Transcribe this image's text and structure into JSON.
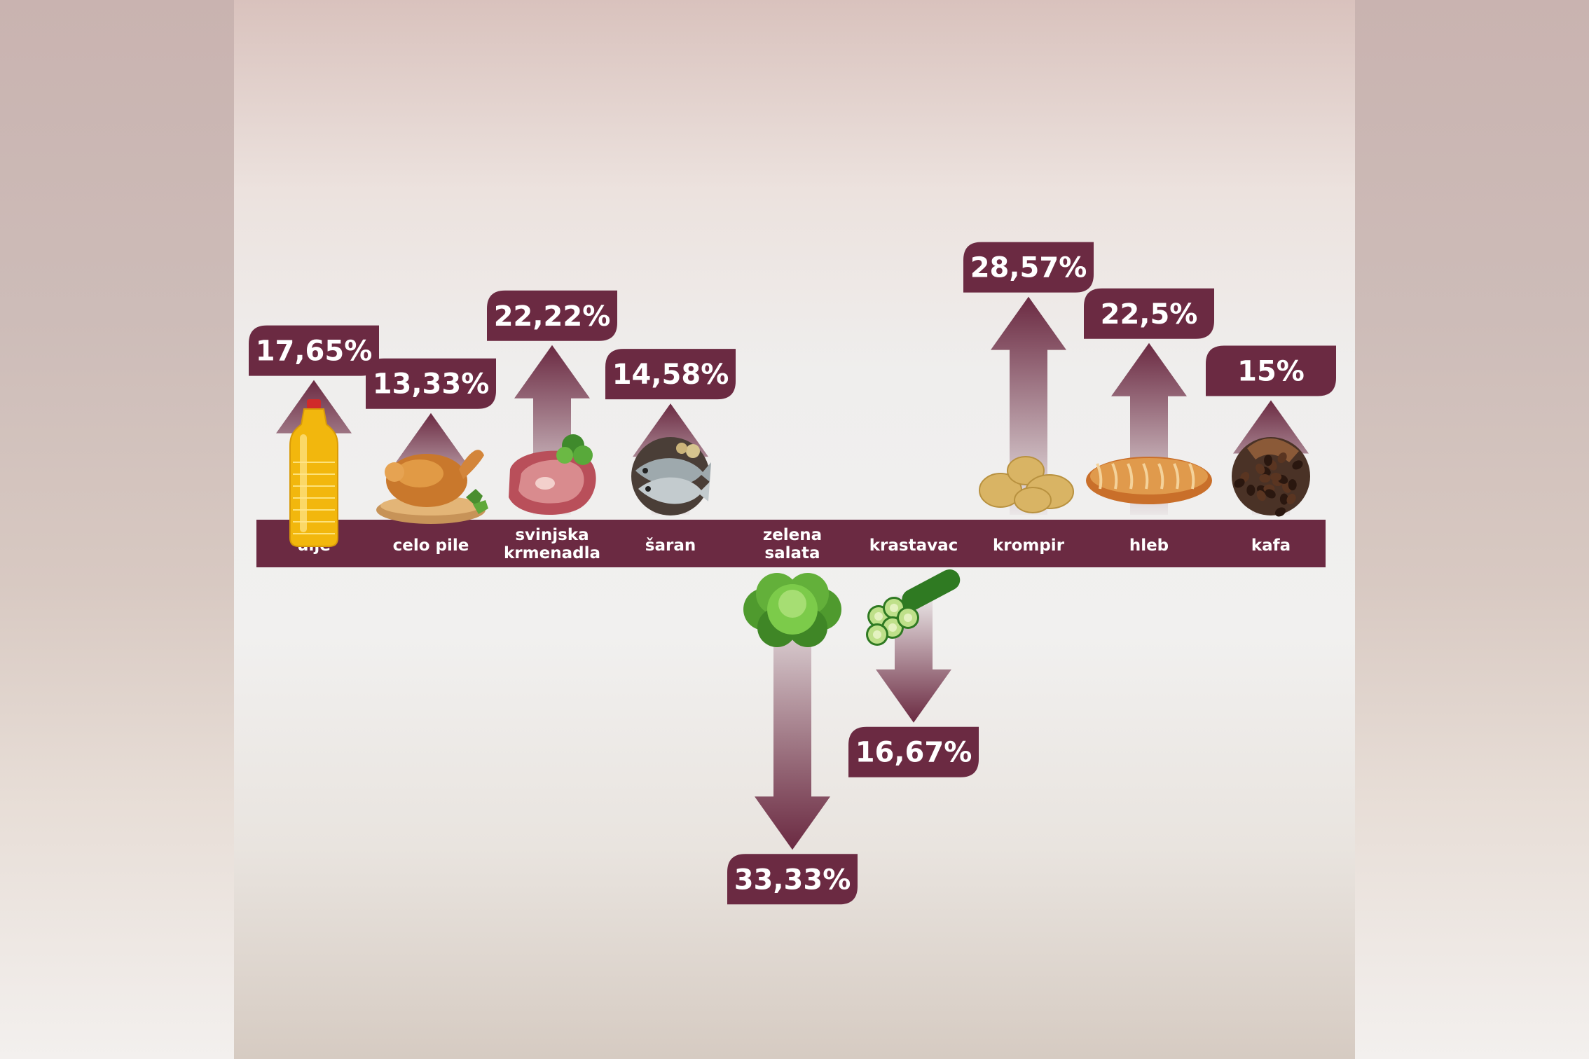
{
  "chart_data": {
    "type": "bar",
    "categories": [
      "ulje",
      "celo pile",
      "svinjska krmenadla",
      "šaran",
      "zelena salata",
      "krastavac",
      "krompir",
      "hleb",
      "kafa"
    ],
    "category_lines": [
      [
        "ulje"
      ],
      [
        "celo pile"
      ],
      [
        "svinjska",
        "krmenadla"
      ],
      [
        "šaran"
      ],
      [
        "zelena",
        "salata"
      ],
      [
        "krastavac"
      ],
      [
        "krompir"
      ],
      [
        "hleb"
      ],
      [
        "kafa"
      ]
    ],
    "values": [
      17.65,
      13.33,
      22.22,
      14.58,
      -33.33,
      -16.67,
      28.57,
      22.5,
      15
    ],
    "labels": [
      "17,65%",
      "13,33%",
      "22,22%",
      "14,58%",
      "33,33%",
      "16,67%",
      "28,57%",
      "22,5%",
      "15%"
    ],
    "icons": [
      "oil-bottle-icon",
      "roast-chicken-icon",
      "pork-chop-icon",
      "fish-icon",
      "lettuce-icon",
      "cucumber-icon",
      "potato-icon",
      "bread-icon",
      "coffee-icon"
    ],
    "colors": {
      "accent": "#6b2a42",
      "arrow_light": "#ffffff",
      "text_light": "#ffffff"
    }
  }
}
